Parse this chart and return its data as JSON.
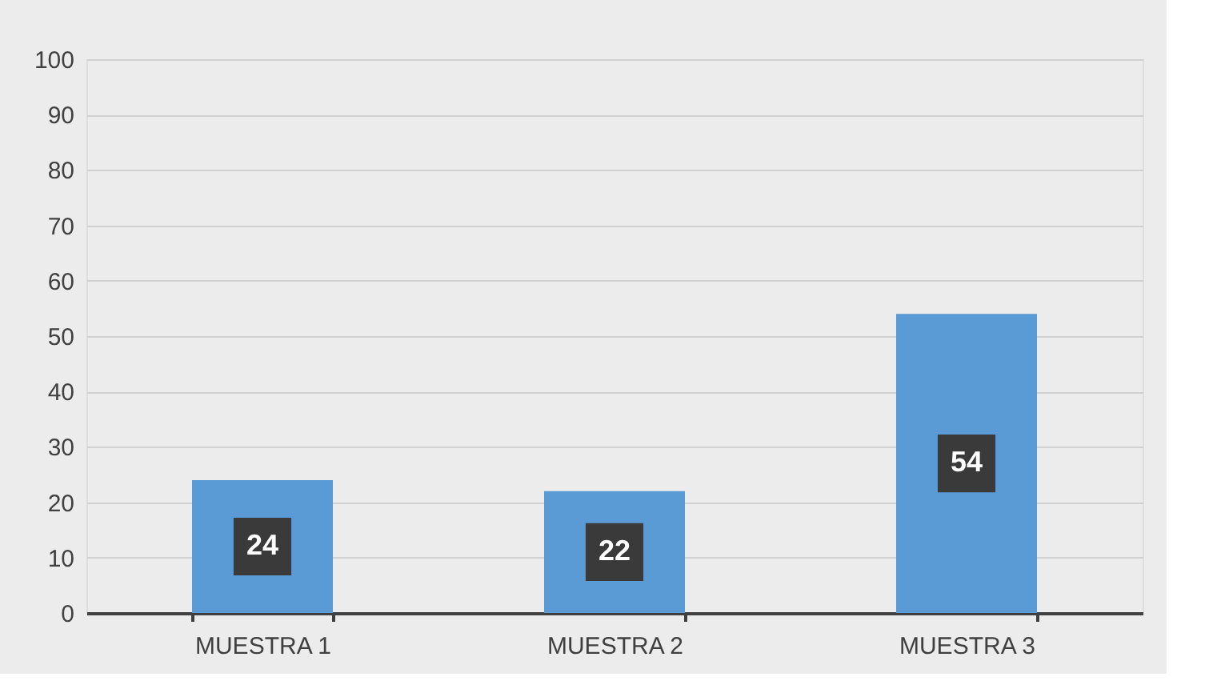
{
  "chart_data": {
    "type": "bar",
    "categories": [
      "MUESTRA 1",
      "MUESTRA 2",
      "MUESTRA 3"
    ],
    "values": [
      24,
      22,
      54
    ],
    "color": "#5b9bd5",
    "ylim": [
      0,
      100
    ],
    "yticks": [
      0,
      10,
      20,
      30,
      40,
      50,
      60,
      70,
      80,
      90,
      100
    ],
    "grid": "y",
    "data_labels": true
  }
}
